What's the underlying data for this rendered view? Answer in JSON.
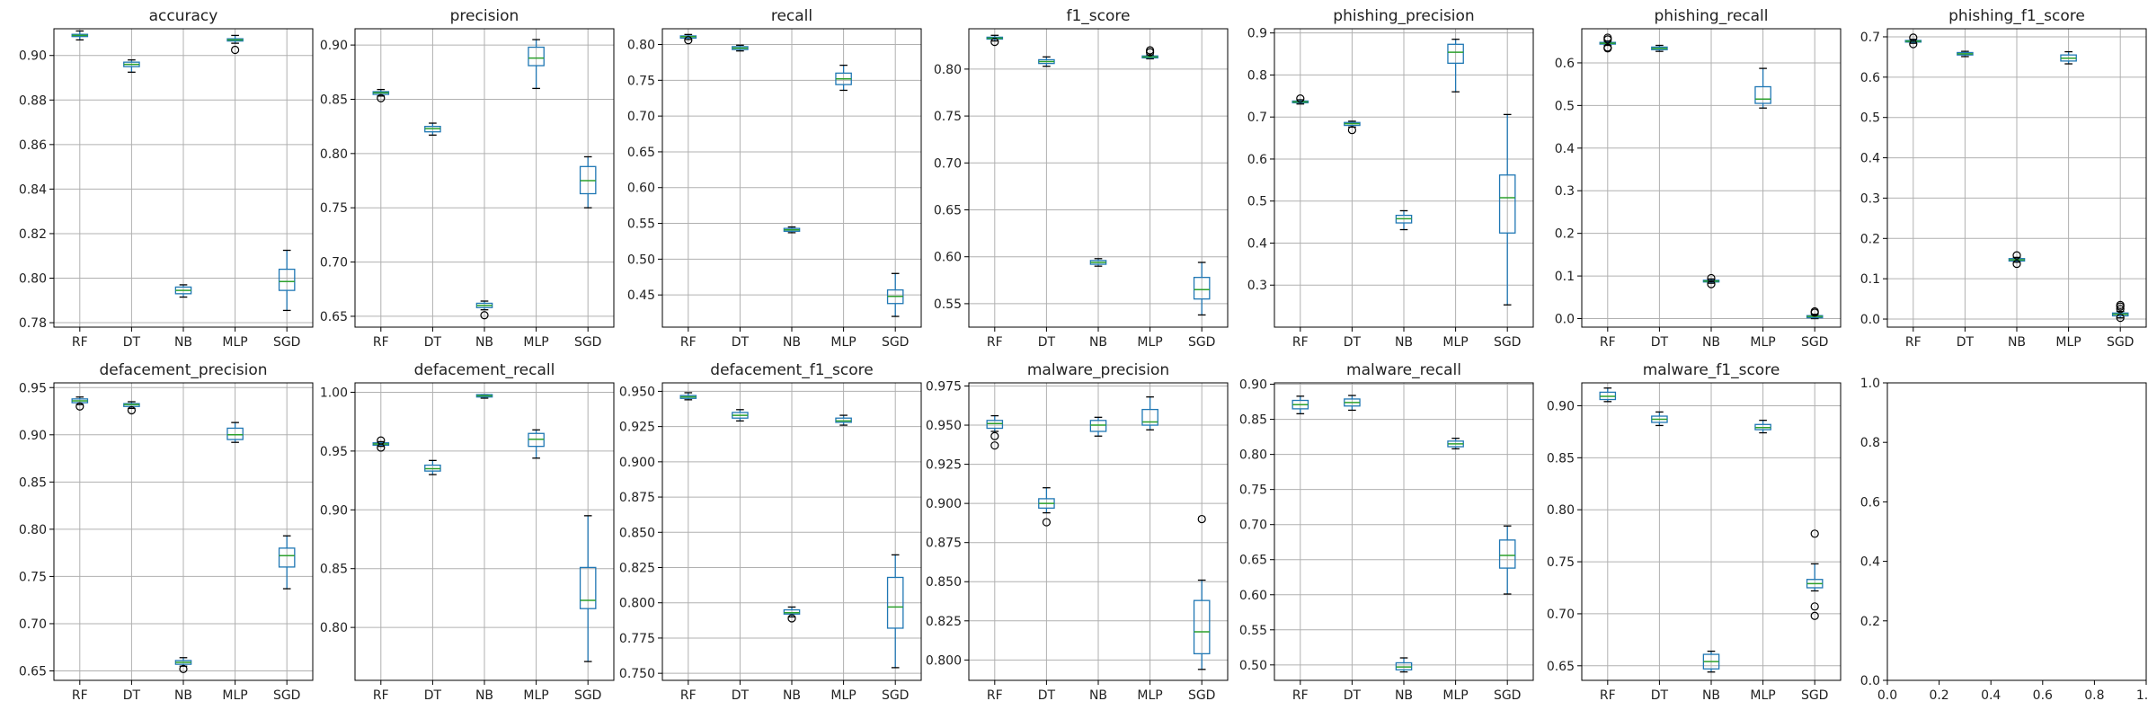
{
  "chart_data": [
    {
      "type": "box",
      "title": "accuracy",
      "categories": [
        "RF",
        "DT",
        "NB",
        "MLP",
        "SGD"
      ],
      "ylim": [
        0.778,
        0.912
      ],
      "yticks": [
        0.78,
        0.8,
        0.82,
        0.84,
        0.86,
        0.88,
        0.9
      ],
      "tick_decimals": 2,
      "grid": true,
      "boxes": [
        {
          "whislo": 0.907,
          "q1": 0.9085,
          "med": 0.909,
          "q3": 0.9095,
          "whishi": 0.911,
          "fliers": []
        },
        {
          "whislo": 0.8925,
          "q1": 0.895,
          "med": 0.896,
          "q3": 0.897,
          "whishi": 0.898,
          "fliers": []
        },
        {
          "whislo": 0.7915,
          "q1": 0.793,
          "med": 0.7945,
          "q3": 0.796,
          "whishi": 0.797,
          "fliers": []
        },
        {
          "whislo": 0.9055,
          "q1": 0.9065,
          "med": 0.907,
          "q3": 0.9075,
          "whishi": 0.909,
          "fliers": [
            0.9025
          ]
        },
        {
          "whislo": 0.7855,
          "q1": 0.7945,
          "med": 0.7985,
          "q3": 0.804,
          "whishi": 0.8125,
          "fliers": []
        }
      ]
    },
    {
      "type": "box",
      "title": "precision",
      "categories": [
        "RF",
        "DT",
        "NB",
        "MLP",
        "SGD"
      ],
      "ylim": [
        0.64,
        0.915
      ],
      "yticks": [
        0.65,
        0.7,
        0.75,
        0.8,
        0.85,
        0.9
      ],
      "tick_decimals": 2,
      "grid": true,
      "boxes": [
        {
          "whislo": 0.853,
          "q1": 0.8545,
          "med": 0.856,
          "q3": 0.857,
          "whishi": 0.859,
          "fliers": [
            0.851
          ]
        },
        {
          "whislo": 0.817,
          "q1": 0.82,
          "med": 0.823,
          "q3": 0.825,
          "whishi": 0.828,
          "fliers": []
        },
        {
          "whislo": 0.656,
          "q1": 0.658,
          "med": 0.66,
          "q3": 0.662,
          "whishi": 0.664,
          "fliers": [
            0.651
          ]
        },
        {
          "whislo": 0.86,
          "q1": 0.881,
          "med": 0.888,
          "q3": 0.898,
          "whishi": 0.905,
          "fliers": []
        },
        {
          "whislo": 0.75,
          "q1": 0.763,
          "med": 0.775,
          "q3": 0.788,
          "whishi": 0.797,
          "fliers": []
        }
      ]
    },
    {
      "type": "box",
      "title": "recall",
      "categories": [
        "RF",
        "DT",
        "NB",
        "MLP",
        "SGD"
      ],
      "ylim": [
        0.405,
        0.822
      ],
      "yticks": [
        0.45,
        0.5,
        0.55,
        0.6,
        0.65,
        0.7,
        0.75,
        0.8
      ],
      "tick_decimals": 2,
      "grid": true,
      "boxes": [
        {
          "whislo": 0.807,
          "q1": 0.809,
          "med": 0.811,
          "q3": 0.812,
          "whishi": 0.814,
          "fliers": [
            0.806
          ]
        },
        {
          "whislo": 0.791,
          "q1": 0.793,
          "med": 0.795,
          "q3": 0.797,
          "whishi": 0.799,
          "fliers": []
        },
        {
          "whislo": 0.537,
          "q1": 0.539,
          "med": 0.541,
          "q3": 0.543,
          "whishi": 0.545,
          "fliers": []
        },
        {
          "whislo": 0.736,
          "q1": 0.744,
          "med": 0.752,
          "q3": 0.76,
          "whishi": 0.771,
          "fliers": []
        },
        {
          "whislo": 0.42,
          "q1": 0.438,
          "med": 0.448,
          "q3": 0.457,
          "whishi": 0.48,
          "fliers": []
        }
      ]
    },
    {
      "type": "box",
      "title": "f1_score",
      "categories": [
        "RF",
        "DT",
        "NB",
        "MLP",
        "SGD"
      ],
      "ylim": [
        0.525,
        0.843
      ],
      "yticks": [
        0.55,
        0.6,
        0.65,
        0.7,
        0.75,
        0.8
      ],
      "tick_decimals": 2,
      "grid": true,
      "boxes": [
        {
          "whislo": 0.83,
          "q1": 0.832,
          "med": 0.833,
          "q3": 0.834,
          "whishi": 0.836,
          "fliers": [
            0.829
          ]
        },
        {
          "whislo": 0.803,
          "q1": 0.806,
          "med": 0.808,
          "q3": 0.81,
          "whishi": 0.813,
          "fliers": []
        },
        {
          "whislo": 0.59,
          "q1": 0.592,
          "med": 0.594,
          "q3": 0.596,
          "whishi": 0.598,
          "fliers": []
        },
        {
          "whislo": 0.811,
          "q1": 0.812,
          "med": 0.813,
          "q3": 0.814,
          "whishi": 0.815,
          "fliers": [
            0.818,
            0.82
          ]
        },
        {
          "whislo": 0.538,
          "q1": 0.555,
          "med": 0.565,
          "q3": 0.578,
          "whishi": 0.594,
          "fliers": []
        }
      ]
    },
    {
      "type": "box",
      "title": "phishing_precision",
      "categories": [
        "RF",
        "DT",
        "NB",
        "MLP",
        "SGD"
      ],
      "ylim": [
        0.2,
        0.91
      ],
      "yticks": [
        0.3,
        0.4,
        0.5,
        0.6,
        0.7,
        0.8,
        0.9
      ],
      "tick_decimals": 1,
      "grid": true,
      "boxes": [
        {
          "whislo": 0.731,
          "q1": 0.734,
          "med": 0.736,
          "q3": 0.738,
          "whishi": 0.741,
          "fliers": [
            0.744
          ]
        },
        {
          "whislo": 0.676,
          "q1": 0.68,
          "med": 0.684,
          "q3": 0.687,
          "whishi": 0.69,
          "fliers": [
            0.669
          ]
        },
        {
          "whislo": 0.432,
          "q1": 0.448,
          "med": 0.458,
          "q3": 0.466,
          "whishi": 0.477,
          "fliers": []
        },
        {
          "whislo": 0.76,
          "q1": 0.828,
          "med": 0.854,
          "q3": 0.873,
          "whishi": 0.885,
          "fliers": []
        },
        {
          "whislo": 0.253,
          "q1": 0.424,
          "med": 0.508,
          "q3": 0.562,
          "whishi": 0.706,
          "fliers": []
        }
      ]
    },
    {
      "type": "box",
      "title": "phishing_recall",
      "categories": [
        "RF",
        "DT",
        "NB",
        "MLP",
        "SGD"
      ],
      "ylim": [
        -0.02,
        0.68
      ],
      "yticks": [
        0.0,
        0.1,
        0.2,
        0.3,
        0.4,
        0.5,
        0.6
      ],
      "tick_decimals": 1,
      "grid": true,
      "boxes": [
        {
          "whislo": 0.641,
          "q1": 0.644,
          "med": 0.646,
          "q3": 0.648,
          "whishi": 0.651,
          "fliers": [
            0.636,
            0.634,
            0.655,
            0.659
          ]
        },
        {
          "whislo": 0.627,
          "q1": 0.631,
          "med": 0.634,
          "q3": 0.637,
          "whishi": 0.641,
          "fliers": []
        },
        {
          "whislo": 0.083,
          "q1": 0.086,
          "med": 0.088,
          "q3": 0.09,
          "whishi": 0.093,
          "fliers": [
            0.081,
            0.095
          ]
        },
        {
          "whislo": 0.494,
          "q1": 0.505,
          "med": 0.515,
          "q3": 0.544,
          "whishi": 0.587,
          "fliers": []
        },
        {
          "whislo": 0.0,
          "q1": 0.002,
          "med": 0.005,
          "q3": 0.007,
          "whishi": 0.01,
          "fliers": [
            0.014,
            0.017
          ]
        }
      ]
    },
    {
      "type": "box",
      "title": "phishing_f1_score",
      "categories": [
        "RF",
        "DT",
        "NB",
        "MLP",
        "SGD"
      ],
      "ylim": [
        -0.02,
        0.72
      ],
      "yticks": [
        0.0,
        0.1,
        0.2,
        0.3,
        0.4,
        0.5,
        0.6,
        0.7
      ],
      "tick_decimals": 1,
      "grid": true,
      "boxes": [
        {
          "whislo": 0.684,
          "q1": 0.687,
          "med": 0.689,
          "q3": 0.691,
          "whishi": 0.694,
          "fliers": [
            0.682,
            0.698
          ]
        },
        {
          "whislo": 0.651,
          "q1": 0.655,
          "med": 0.658,
          "q3": 0.661,
          "whishi": 0.664,
          "fliers": []
        },
        {
          "whislo": 0.141,
          "q1": 0.144,
          "med": 0.147,
          "q3": 0.15,
          "whishi": 0.153,
          "fliers": [
            0.137,
            0.158
          ]
        },
        {
          "whislo": 0.633,
          "q1": 0.64,
          "med": 0.647,
          "q3": 0.655,
          "whishi": 0.663,
          "fliers": []
        },
        {
          "whislo": 0.003,
          "q1": 0.008,
          "med": 0.012,
          "q3": 0.015,
          "whishi": 0.019,
          "fliers": [
            0.003,
            0.025,
            0.031,
            0.035
          ]
        }
      ]
    },
    {
      "type": "box",
      "title": "defacement_precision",
      "categories": [
        "RF",
        "DT",
        "NB",
        "MLP",
        "SGD"
      ],
      "ylim": [
        0.64,
        0.955
      ],
      "yticks": [
        0.65,
        0.7,
        0.75,
        0.8,
        0.85,
        0.9,
        0.95
      ],
      "tick_decimals": 2,
      "grid": true,
      "boxes": [
        {
          "whislo": 0.932,
          "q1": 0.934,
          "med": 0.936,
          "q3": 0.938,
          "whishi": 0.94,
          "fliers": [
            0.93
          ]
        },
        {
          "whislo": 0.928,
          "q1": 0.93,
          "med": 0.932,
          "q3": 0.933,
          "whishi": 0.935,
          "fliers": [
            0.926
          ]
        },
        {
          "whislo": 0.655,
          "q1": 0.657,
          "med": 0.659,
          "q3": 0.661,
          "whishi": 0.664,
          "fliers": [
            0.652
          ]
        },
        {
          "whislo": 0.892,
          "q1": 0.895,
          "med": 0.9,
          "q3": 0.907,
          "whishi": 0.913,
          "fliers": []
        },
        {
          "whislo": 0.737,
          "q1": 0.76,
          "med": 0.772,
          "q3": 0.78,
          "whishi": 0.793,
          "fliers": []
        }
      ]
    },
    {
      "type": "box",
      "title": "defacement_recall",
      "categories": [
        "RF",
        "DT",
        "NB",
        "MLP",
        "SGD"
      ],
      "ylim": [
        0.755,
        1.008
      ],
      "yticks": [
        0.8,
        0.85,
        0.9,
        0.95,
        1.0
      ],
      "tick_decimals": 2,
      "grid": true,
      "boxes": [
        {
          "whislo": 0.954,
          "q1": 0.955,
          "med": 0.956,
          "q3": 0.957,
          "whishi": 0.958,
          "fliers": [
            0.953,
            0.959
          ]
        },
        {
          "whislo": 0.93,
          "q1": 0.933,
          "med": 0.935,
          "q3": 0.938,
          "whishi": 0.942,
          "fliers": []
        },
        {
          "whislo": 0.995,
          "q1": 0.996,
          "med": 0.997,
          "q3": 0.998,
          "whishi": 0.998,
          "fliers": []
        },
        {
          "whislo": 0.944,
          "q1": 0.954,
          "med": 0.96,
          "q3": 0.965,
          "whishi": 0.968,
          "fliers": []
        },
        {
          "whislo": 0.771,
          "q1": 0.816,
          "med": 0.823,
          "q3": 0.851,
          "whishi": 0.895,
          "fliers": []
        }
      ]
    },
    {
      "type": "box",
      "title": "defacement_f1_score",
      "categories": [
        "RF",
        "DT",
        "NB",
        "MLP",
        "SGD"
      ],
      "ylim": [
        0.745,
        0.956
      ],
      "yticks": [
        0.75,
        0.775,
        0.8,
        0.825,
        0.85,
        0.875,
        0.9,
        0.925,
        0.95
      ],
      "tick_decimals": 3,
      "grid": true,
      "boxes": [
        {
          "whislo": 0.944,
          "q1": 0.945,
          "med": 0.946,
          "q3": 0.947,
          "whishi": 0.949,
          "fliers": []
        },
        {
          "whislo": 0.929,
          "q1": 0.931,
          "med": 0.933,
          "q3": 0.935,
          "whishi": 0.937,
          "fliers": []
        },
        {
          "whislo": 0.79,
          "q1": 0.792,
          "med": 0.793,
          "q3": 0.795,
          "whishi": 0.797,
          "fliers": [
            0.789
          ]
        },
        {
          "whislo": 0.926,
          "q1": 0.928,
          "med": 0.929,
          "q3": 0.931,
          "whishi": 0.933,
          "fliers": []
        },
        {
          "whislo": 0.754,
          "q1": 0.782,
          "med": 0.797,
          "q3": 0.818,
          "whishi": 0.834,
          "fliers": []
        }
      ]
    },
    {
      "type": "box",
      "title": "malware_precision",
      "categories": [
        "RF",
        "DT",
        "NB",
        "MLP",
        "SGD"
      ],
      "ylim": [
        0.787,
        0.977
      ],
      "yticks": [
        0.8,
        0.825,
        0.85,
        0.875,
        0.9,
        0.925,
        0.95,
        0.975
      ],
      "tick_decimals": 3,
      "grid": true,
      "boxes": [
        {
          "whislo": 0.946,
          "q1": 0.948,
          "med": 0.951,
          "q3": 0.953,
          "whishi": 0.956,
          "fliers": [
            0.943,
            0.937
          ]
        },
        {
          "whislo": 0.894,
          "q1": 0.897,
          "med": 0.9,
          "q3": 0.903,
          "whishi": 0.91,
          "fliers": [
            0.888
          ]
        },
        {
          "whislo": 0.943,
          "q1": 0.946,
          "med": 0.95,
          "q3": 0.953,
          "whishi": 0.955,
          "fliers": []
        },
        {
          "whislo": 0.947,
          "q1": 0.95,
          "med": 0.952,
          "q3": 0.96,
          "whishi": 0.968,
          "fliers": []
        },
        {
          "whislo": 0.794,
          "q1": 0.804,
          "med": 0.818,
          "q3": 0.838,
          "whishi": 0.851,
          "fliers": [
            0.89
          ]
        }
      ]
    },
    {
      "type": "box",
      "title": "malware_recall",
      "categories": [
        "RF",
        "DT",
        "NB",
        "MLP",
        "SGD"
      ],
      "ylim": [
        0.478,
        0.902
      ],
      "yticks": [
        0.5,
        0.55,
        0.6,
        0.65,
        0.7,
        0.75,
        0.8,
        0.85,
        0.9
      ],
      "tick_decimals": 2,
      "grid": true,
      "boxes": [
        {
          "whislo": 0.858,
          "q1": 0.865,
          "med": 0.871,
          "q3": 0.877,
          "whishi": 0.883,
          "fliers": []
        },
        {
          "whislo": 0.863,
          "q1": 0.869,
          "med": 0.874,
          "q3": 0.879,
          "whishi": 0.884,
          "fliers": []
        },
        {
          "whislo": 0.49,
          "q1": 0.493,
          "med": 0.497,
          "q3": 0.503,
          "whishi": 0.51,
          "fliers": []
        },
        {
          "whislo": 0.808,
          "q1": 0.811,
          "med": 0.815,
          "q3": 0.819,
          "whishi": 0.823,
          "fliers": []
        },
        {
          "whislo": 0.601,
          "q1": 0.638,
          "med": 0.656,
          "q3": 0.678,
          "whishi": 0.698,
          "fliers": []
        }
      ]
    },
    {
      "type": "box",
      "title": "malware_f1_score",
      "categories": [
        "RF",
        "DT",
        "NB",
        "MLP",
        "SGD"
      ],
      "ylim": [
        0.636,
        0.922
      ],
      "yticks": [
        0.65,
        0.7,
        0.75,
        0.8,
        0.85,
        0.9
      ],
      "tick_decimals": 2,
      "grid": true,
      "boxes": [
        {
          "whislo": 0.904,
          "q1": 0.906,
          "med": 0.909,
          "q3": 0.913,
          "whishi": 0.917,
          "fliers": []
        },
        {
          "whislo": 0.881,
          "q1": 0.884,
          "med": 0.887,
          "q3": 0.89,
          "whishi": 0.894,
          "fliers": []
        },
        {
          "whislo": 0.644,
          "q1": 0.647,
          "med": 0.654,
          "q3": 0.661,
          "whishi": 0.664,
          "fliers": []
        },
        {
          "whislo": 0.874,
          "q1": 0.877,
          "med": 0.879,
          "q3": 0.882,
          "whishi": 0.886,
          "fliers": []
        },
        {
          "whislo": 0.722,
          "q1": 0.725,
          "med": 0.729,
          "q3": 0.733,
          "whishi": 0.748,
          "fliers": [
            0.777,
            0.707,
            0.698
          ]
        }
      ]
    },
    {
      "type": "empty",
      "title": "",
      "categories": [],
      "xlim": [
        0.0,
        1.0
      ],
      "ylim": [
        0.0,
        1.0
      ],
      "xticks": [
        0.0,
        0.2,
        0.4,
        0.6,
        0.8,
        1.0
      ],
      "yticks": [
        0.0,
        0.2,
        0.4,
        0.6,
        0.8,
        1.0
      ],
      "tick_decimals": 1,
      "grid": false,
      "boxes": []
    }
  ],
  "colors": {
    "box": "#1f77b4",
    "median": "#2ca02c",
    "grid": "#b0b0b0",
    "axis": "#000000"
  }
}
